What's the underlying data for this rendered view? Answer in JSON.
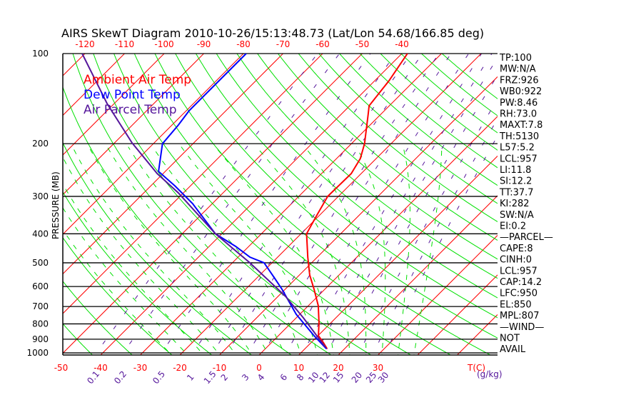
{
  "chart_data": {
    "type": "line",
    "title": "AIRS SkewT Diagram 2010-10-26/15:13:48.73 (Lat/Lon 54.68/166.85 deg)",
    "ylabel": "PRESSURE (MB)",
    "xlabel": "T(C)",
    "mixing_ratio_label": "(g/kg)",
    "ylim": [
      1020,
      100
    ],
    "yscale": "log",
    "y_ticks": [
      100,
      200,
      300,
      400,
      500,
      600,
      700,
      800,
      900,
      1000
    ],
    "top_x_ticks": [
      -120,
      -110,
      -100,
      -90,
      -80,
      -70,
      -60,
      -50,
      -40
    ],
    "bottom_x_ticks": [
      -50,
      -40,
      -30,
      -20,
      -10,
      0,
      10,
      20,
      30
    ],
    "mixing_ratio_ticks": [
      "0.1",
      "0.2",
      "0.5",
      "1",
      "1.5",
      "2",
      "3",
      "4",
      "6",
      "8",
      "10",
      "12",
      "15",
      "20",
      "25",
      "30"
    ],
    "grid": true,
    "legend_placement": "top-left",
    "colors": {
      "temp": "#ff0000",
      "dew": "#0000ff",
      "parcel": "#55169b",
      "dry": "#00e000",
      "moist": "#00e000",
      "mixing": "#55169b",
      "isotherm": "#ff0000"
    },
    "series": [
      {
        "name": "Ambient Air Temp",
        "key": "temp",
        "p": [
          100,
          123.2,
          149.4,
          159.5,
          200,
          224.3,
          251.7,
          300,
          353.9,
          400,
          478.7,
          549.2,
          613,
          695.6,
          793.4,
          876,
          925.5,
          967
        ],
        "t": [
          -38.6,
          -36.4,
          -35.1,
          -33.2,
          -26.7,
          -24.0,
          -22.5,
          -22.7,
          -20.4,
          -18.6,
          -12.4,
          -7.4,
          -2.7,
          2.5,
          7.0,
          10.1,
          13.2,
          15.5
        ]
      },
      {
        "name": "Dew Point Temp",
        "key": "dew",
        "p": [
          100,
          114.7,
          131.6,
          155.2,
          173.2,
          200,
          247.6,
          276.4,
          317,
          400,
          440.8,
          478.7,
          500,
          564.6,
          613,
          743,
          876,
          967
        ],
        "t": [
          -79.3,
          -79.3,
          -79.3,
          -79.3,
          -78.4,
          -77.7,
          -71.7,
          -64.0,
          -55.0,
          -41.6,
          -33.3,
          -27.0,
          -22.0,
          -15.3,
          -10.8,
          -0.9,
          9.0,
          15.3
        ]
      },
      {
        "name": "Air Parcel Temp",
        "key": "parcel",
        "p": [
          100,
          146.9,
          198.7,
          251.7,
          291.9,
          400,
          500,
          647.6,
          763.7,
          951
        ],
        "t": [
          -120.7,
          -101.8,
          -85.6,
          -71.5,
          -61.3,
          -41.6,
          -25.6,
          -8.1,
          1.8,
          14.4
        ]
      }
    ]
  },
  "stats": [
    "TP:100",
    "MW:N/A",
    "FRZ:926",
    "WB0:922",
    "PW:8.46",
    "RH:73.0",
    "MAXT:7.8",
    "TH:5130",
    "L57:5.2",
    "LCL:957",
    "LI:11.8",
    "SI:12.2",
    "TT:37.7",
    "KI:282",
    "SW:N/A",
    "EI:0.2",
    "—PARCEL—",
    "CAPE:8",
    "CINH:0",
    "LCL:957",
    "CAP:14.2",
    "LFC:950",
    "EL:850",
    "MPL:807",
    "—WIND—",
    "NOT",
    "AVAIL"
  ]
}
